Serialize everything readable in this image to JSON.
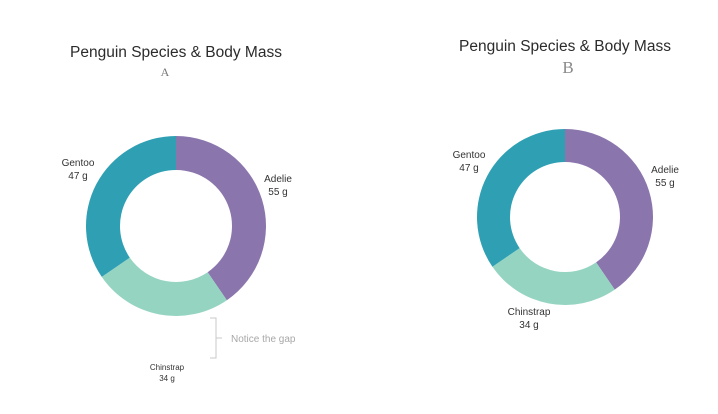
{
  "charts": [
    {
      "id": "a",
      "title": "Penguin  Species & Body Mass",
      "subtitle": "A",
      "annotation": "Notice the gap"
    },
    {
      "id": "b",
      "title": "Penguin  Species & Body Mass",
      "subtitle": "B"
    }
  ],
  "chart_data": [
    {
      "type": "pie",
      "variant": "donut",
      "title": "Penguin  Species & Body Mass",
      "subtitle": "A",
      "unit": "g",
      "slices": [
        {
          "label": "Adelie",
          "value": 55,
          "value_label": "55 g",
          "color": "#8a76ad"
        },
        {
          "label": "Chinstrap",
          "value": 34,
          "value_label": "34 g",
          "color": "#96d4c2"
        },
        {
          "label": "Gentoo",
          "value": 47,
          "value_label": "47 g",
          "color": "#2fa0b3"
        }
      ],
      "annotation": "Notice the gap"
    },
    {
      "type": "pie",
      "variant": "donut",
      "title": "Penguin  Species & Body Mass",
      "subtitle": "B",
      "unit": "g",
      "slices": [
        {
          "label": "Adelie",
          "value": 55,
          "value_label": "55 g",
          "color": "#8a76ad"
        },
        {
          "label": "Chinstrap",
          "value": 34,
          "value_label": "34 g",
          "color": "#96d4c2"
        },
        {
          "label": "Gentoo",
          "value": 47,
          "value_label": "47 g",
          "color": "#2fa0b3"
        }
      ]
    }
  ]
}
